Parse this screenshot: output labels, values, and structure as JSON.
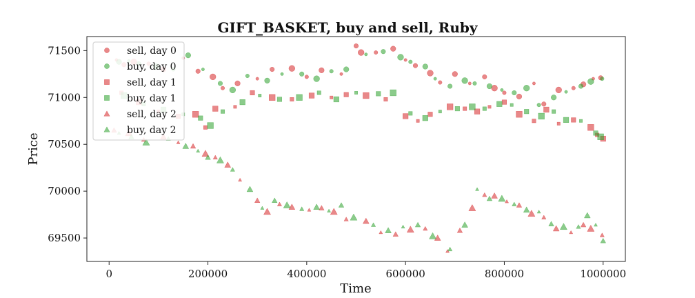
{
  "chart_data": {
    "type": "scatter",
    "title": "GIFT_BASKET, buy and sell, Ruby",
    "xlabel": "Time",
    "ylabel": "Price",
    "xlim": [
      -45000,
      1045000
    ],
    "ylim": [
      69250,
      71650
    ],
    "xticks": [
      0,
      200000,
      400000,
      600000,
      800000,
      1000000
    ],
    "xtick_labels": [
      "0",
      "200000",
      "400000",
      "600000",
      "800000",
      "1000000"
    ],
    "yticks": [
      69500,
      70000,
      70500,
      71000,
      71500
    ],
    "ytick_labels": [
      "69500",
      "70000",
      "70500",
      "71000",
      "71500"
    ],
    "grid": false,
    "legend_position": "top-left",
    "colors": {
      "sell": "#d62728",
      "buy": "#2ca02c"
    },
    "series": [
      {
        "name": "sell, day 0",
        "marker": "circle",
        "color": "#d62728",
        "points": [
          [
            15000,
            71400
          ],
          [
            30000,
            71350
          ],
          [
            50000,
            71380
          ],
          [
            80000,
            71360
          ],
          [
            110000,
            71300
          ],
          [
            150000,
            71420
          ],
          [
            180000,
            71280
          ],
          [
            210000,
            71220
          ],
          [
            230000,
            71100
          ],
          [
            260000,
            71150
          ],
          [
            300000,
            71200
          ],
          [
            330000,
            71300
          ],
          [
            370000,
            71310
          ],
          [
            400000,
            71220
          ],
          [
            430000,
            71290
          ],
          [
            470000,
            71250
          ],
          [
            500000,
            71550
          ],
          [
            510000,
            71480
          ],
          [
            540000,
            71480
          ],
          [
            575000,
            71520
          ],
          [
            600000,
            71400
          ],
          [
            620000,
            71340
          ],
          [
            650000,
            71260
          ],
          [
            670000,
            71160
          ],
          [
            700000,
            71250
          ],
          [
            730000,
            71150
          ],
          [
            760000,
            71220
          ],
          [
            780000,
            71100
          ],
          [
            800000,
            71050
          ],
          [
            830000,
            71010
          ],
          [
            860000,
            71150
          ],
          [
            880000,
            70930
          ],
          [
            910000,
            71080
          ],
          [
            940000,
            71100
          ],
          [
            960000,
            71140
          ],
          [
            980000,
            71200
          ],
          [
            995000,
            71210
          ]
        ]
      },
      {
        "name": "buy, day 0",
        "marker": "circle",
        "color": "#2ca02c",
        "points": [
          [
            20000,
            71380
          ],
          [
            40000,
            71390
          ],
          [
            60000,
            71360
          ],
          [
            95000,
            71330
          ],
          [
            130000,
            71300
          ],
          [
            160000,
            71450
          ],
          [
            190000,
            71300
          ],
          [
            225000,
            71150
          ],
          [
            250000,
            71080
          ],
          [
            280000,
            71230
          ],
          [
            320000,
            71180
          ],
          [
            350000,
            71250
          ],
          [
            390000,
            71250
          ],
          [
            420000,
            71200
          ],
          [
            450000,
            71280
          ],
          [
            480000,
            71300
          ],
          [
            520000,
            71460
          ],
          [
            555000,
            71490
          ],
          [
            590000,
            71430
          ],
          [
            610000,
            71380
          ],
          [
            640000,
            71330
          ],
          [
            660000,
            71200
          ],
          [
            690000,
            71120
          ],
          [
            720000,
            71180
          ],
          [
            740000,
            71150
          ],
          [
            770000,
            71120
          ],
          [
            795000,
            71080
          ],
          [
            820000,
            71050
          ],
          [
            845000,
            71100
          ],
          [
            870000,
            70920
          ],
          [
            900000,
            71000
          ],
          [
            925000,
            71060
          ],
          [
            955000,
            71120
          ],
          [
            975000,
            71170
          ],
          [
            998000,
            71200
          ]
        ]
      },
      {
        "name": "sell, day 1",
        "marker": "square",
        "color": "#d62728",
        "points": [
          [
            25000,
            71050
          ],
          [
            60000,
            70950
          ],
          [
            100000,
            70850
          ],
          [
            140000,
            70800
          ],
          [
            175000,
            70820
          ],
          [
            195000,
            70680
          ],
          [
            215000,
            70880
          ],
          [
            255000,
            70900
          ],
          [
            290000,
            71050
          ],
          [
            330000,
            71000
          ],
          [
            370000,
            70980
          ],
          [
            410000,
            71020
          ],
          [
            450000,
            71000
          ],
          [
            480000,
            71030
          ],
          [
            520000,
            71020
          ],
          [
            560000,
            70980
          ],
          [
            600000,
            70800
          ],
          [
            625000,
            70750
          ],
          [
            650000,
            70820
          ],
          [
            690000,
            70900
          ],
          [
            720000,
            70880
          ],
          [
            745000,
            70850
          ],
          [
            770000,
            70900
          ],
          [
            800000,
            70950
          ],
          [
            830000,
            70820
          ],
          [
            860000,
            70750
          ],
          [
            885000,
            70870
          ],
          [
            910000,
            70720
          ],
          [
            940000,
            70760
          ],
          [
            975000,
            70680
          ],
          [
            988000,
            70600
          ],
          [
            1000000,
            70560
          ]
        ]
      },
      {
        "name": "buy, day 1",
        "marker": "square",
        "color": "#2ca02c",
        "points": [
          [
            30000,
            71020
          ],
          [
            70000,
            70930
          ],
          [
            110000,
            70870
          ],
          [
            150000,
            70820
          ],
          [
            185000,
            70780
          ],
          [
            205000,
            70700
          ],
          [
            230000,
            70850
          ],
          [
            270000,
            70950
          ],
          [
            305000,
            71020
          ],
          [
            345000,
            70980
          ],
          [
            385000,
            71000
          ],
          [
            425000,
            71050
          ],
          [
            460000,
            70980
          ],
          [
            500000,
            71050
          ],
          [
            545000,
            71040
          ],
          [
            575000,
            71050
          ],
          [
            610000,
            70830
          ],
          [
            640000,
            70780
          ],
          [
            670000,
            70850
          ],
          [
            705000,
            70880
          ],
          [
            735000,
            70900
          ],
          [
            760000,
            70880
          ],
          [
            790000,
            70930
          ],
          [
            815000,
            70920
          ],
          [
            845000,
            70850
          ],
          [
            875000,
            70800
          ],
          [
            900000,
            70850
          ],
          [
            925000,
            70760
          ],
          [
            955000,
            70750
          ],
          [
            985000,
            70620
          ],
          [
            995000,
            70580
          ]
        ]
      },
      {
        "name": "sell, day 2",
        "marker": "triangle",
        "color": "#d62728",
        "points": [
          [
            10000,
            70650
          ],
          [
            40000,
            70620
          ],
          [
            70000,
            70550
          ],
          [
            110000,
            70580
          ],
          [
            140000,
            70520
          ],
          [
            170000,
            70480
          ],
          [
            195000,
            70400
          ],
          [
            215000,
            70360
          ],
          [
            240000,
            70280
          ],
          [
            265000,
            70120
          ],
          [
            300000,
            69900
          ],
          [
            320000,
            69780
          ],
          [
            345000,
            69860
          ],
          [
            370000,
            69830
          ],
          [
            405000,
            69800
          ],
          [
            430000,
            69820
          ],
          [
            455000,
            69780
          ],
          [
            480000,
            69700
          ],
          [
            520000,
            69680
          ],
          [
            550000,
            69560
          ],
          [
            580000,
            69540
          ],
          [
            610000,
            69590
          ],
          [
            640000,
            69600
          ],
          [
            665000,
            69500
          ],
          [
            685000,
            69360
          ],
          [
            710000,
            69580
          ],
          [
            735000,
            69820
          ],
          [
            760000,
            69960
          ],
          [
            780000,
            69950
          ],
          [
            805000,
            69890
          ],
          [
            830000,
            69850
          ],
          [
            855000,
            69760
          ],
          [
            880000,
            69720
          ],
          [
            905000,
            69600
          ],
          [
            935000,
            69560
          ],
          [
            960000,
            69640
          ],
          [
            975000,
            69600
          ],
          [
            998000,
            69530
          ]
        ]
      },
      {
        "name": "buy, day 2",
        "marker": "triangle",
        "color": "#2ca02c",
        "points": [
          [
            20000,
            70620
          ],
          [
            45000,
            70580
          ],
          [
            75000,
            70520
          ],
          [
            120000,
            70560
          ],
          [
            155000,
            70480
          ],
          [
            180000,
            70430
          ],
          [
            200000,
            70360
          ],
          [
            225000,
            70330
          ],
          [
            250000,
            70230
          ],
          [
            285000,
            70020
          ],
          [
            310000,
            69820
          ],
          [
            335000,
            69900
          ],
          [
            360000,
            69850
          ],
          [
            390000,
            69810
          ],
          [
            420000,
            69830
          ],
          [
            445000,
            69790
          ],
          [
            470000,
            69850
          ],
          [
            495000,
            69720
          ],
          [
            535000,
            69640
          ],
          [
            565000,
            69580
          ],
          [
            595000,
            69620
          ],
          [
            625000,
            69640
          ],
          [
            655000,
            69520
          ],
          [
            690000,
            69380
          ],
          [
            720000,
            69640
          ],
          [
            745000,
            70020
          ],
          [
            770000,
            69920
          ],
          [
            795000,
            69920
          ],
          [
            820000,
            69860
          ],
          [
            845000,
            69800
          ],
          [
            870000,
            69780
          ],
          [
            895000,
            69650
          ],
          [
            920000,
            69620
          ],
          [
            950000,
            69620
          ],
          [
            968000,
            69740
          ],
          [
            985000,
            69640
          ],
          [
            1000000,
            69470
          ]
        ]
      }
    ]
  }
}
